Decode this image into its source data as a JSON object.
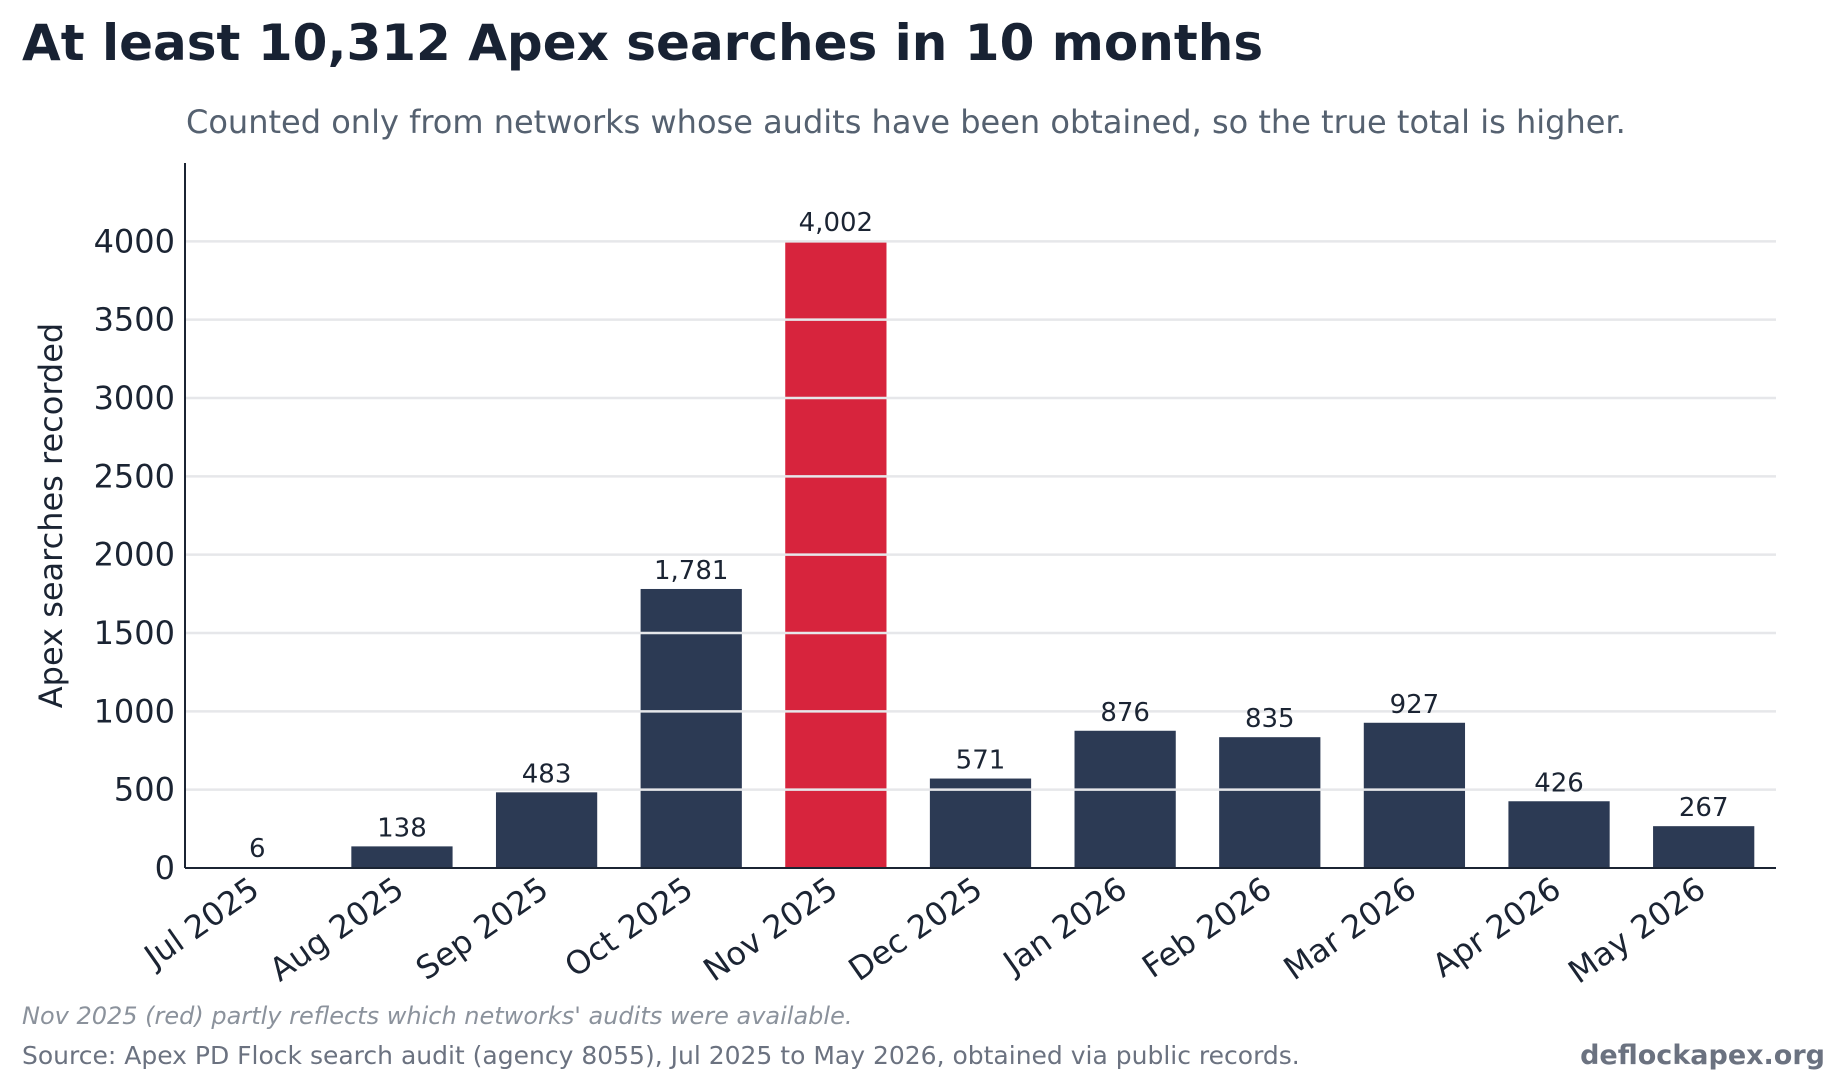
{
  "header": {
    "title": "At least 10,312 Apex searches in 10 months",
    "subtitle": "Counted only from networks whose audits have been obtained, so the true total is higher."
  },
  "chart_data": {
    "type": "bar",
    "title": "At least 10,312 Apex searches in 10 months",
    "subtitle": "Counted only from networks whose audits have been obtained, so the true total is higher.",
    "xlabel": "",
    "ylabel": "Apex searches recorded",
    "categories": [
      "Jul 2025",
      "Aug 2025",
      "Sep 2025",
      "Oct 2025",
      "Nov 2025",
      "Dec 2025",
      "Jan 2026",
      "Feb 2026",
      "Mar 2026",
      "Apr 2026",
      "May 2026"
    ],
    "values": [
      6,
      138,
      483,
      1781,
      4002,
      571,
      876,
      835,
      927,
      426,
      267
    ],
    "value_labels": [
      "6",
      "138",
      "483",
      "1,781",
      "4,002",
      "571",
      "876",
      "835",
      "927",
      "426",
      "267"
    ],
    "highlight_index": 4,
    "colors": {
      "default": "#2c3a54",
      "highlight": "#d7243d",
      "grid": "#e6e7ea"
    },
    "ylim": [
      0,
      4500
    ],
    "yticks": [
      0,
      500,
      1000,
      1500,
      2000,
      2500,
      3000,
      3500,
      4000
    ],
    "grid": "horizontal, drawn over bars"
  },
  "footer": {
    "note": "Nov 2025 (red) partly reflects which networks' audits were available.",
    "source": "Source: Apex PD Flock search audit (agency 8055), Jul 2025 to May 2026, obtained via public records.",
    "brand": "deflockapex.org"
  }
}
